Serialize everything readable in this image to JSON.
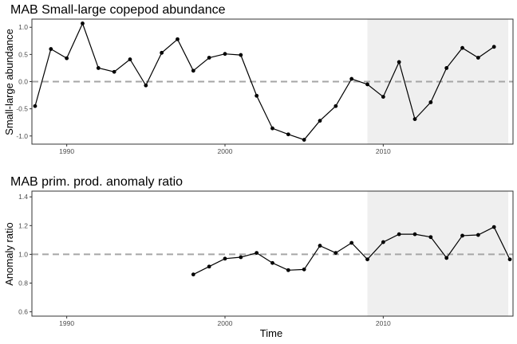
{
  "figure": {
    "xlabel": "Time"
  },
  "chart_data": [
    {
      "type": "line",
      "title": "MAB Small-large copepod abundance",
      "xlabel": "",
      "ylabel": "Small-large abundance",
      "xlim": [
        1987.8,
        2018.2
      ],
      "ylim": [
        -1.15,
        1.15
      ],
      "xticks": [
        1990,
        2000,
        2010
      ],
      "yticks": [
        -1.0,
        -0.5,
        0.0,
        0.5,
        1.0
      ],
      "ytick_labels": [
        "-1.0",
        "-0.5",
        "0.0",
        "0.5",
        "1.0"
      ],
      "reference_line": 0.0,
      "shaded_region": [
        2009,
        2017.9
      ],
      "x": [
        1988,
        1989,
        1990,
        1991,
        1992,
        1993,
        1994,
        1995,
        1996,
        1997,
        1998,
        1999,
        2000,
        2001,
        2002,
        2003,
        2004,
        2005,
        2006,
        2007,
        2008,
        2009,
        2010,
        2011,
        2012,
        2013,
        2014,
        2015,
        2016,
        2017
      ],
      "y": [
        -0.45,
        0.6,
        0.43,
        1.07,
        0.25,
        0.18,
        0.41,
        -0.07,
        0.53,
        0.78,
        0.2,
        0.44,
        0.51,
        0.49,
        -0.26,
        -0.86,
        -0.97,
        -1.07,
        -0.72,
        -0.45,
        0.05,
        -0.05,
        -0.28,
        0.36,
        -0.69,
        -0.38,
        0.25,
        0.62,
        0.44,
        0.64
      ]
    },
    {
      "type": "line",
      "title": "MAB prim. prod. anomaly ratio",
      "xlabel": "Time",
      "ylabel": "Anomaly ratio",
      "xlim": [
        1987.8,
        2018.2
      ],
      "ylim": [
        0.57,
        1.44
      ],
      "xticks": [
        1990,
        2000,
        2010
      ],
      "yticks": [
        0.6,
        0.8,
        1.0,
        1.2,
        1.4
      ],
      "ytick_labels": [
        "0.6",
        "0.8",
        "1.0",
        "1.2",
        "1.4"
      ],
      "reference_line": 1.0,
      "shaded_region": [
        2009,
        2017.9
      ],
      "x": [
        1998,
        1999,
        2000,
        2001,
        2002,
        2003,
        2004,
        2005,
        2006,
        2007,
        2008,
        2009,
        2010,
        2011,
        2012,
        2013,
        2014,
        2015,
        2016,
        2017,
        2018
      ],
      "y": [
        0.86,
        0.915,
        0.97,
        0.98,
        1.01,
        0.94,
        0.89,
        0.895,
        1.06,
        1.01,
        1.08,
        0.965,
        1.085,
        1.14,
        1.14,
        1.12,
        0.975,
        1.13,
        1.135,
        1.19,
        0.965
      ]
    }
  ]
}
